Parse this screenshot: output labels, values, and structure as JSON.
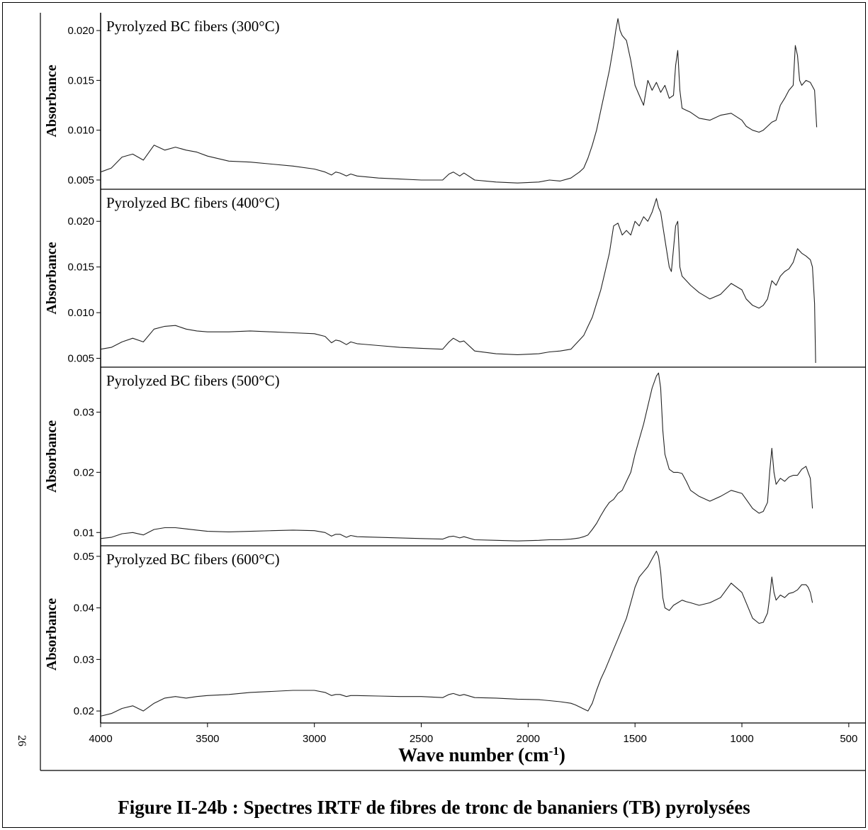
{
  "page_number": "26",
  "caption": "Figure II-24b : Spectres IRTF de fibres de tronc de bananiers (TB) pyrolysées",
  "chart_data": [
    {
      "type": "line",
      "title": "Pyrolyzed BC fibers (300°C)",
      "ylabel": "Absorbance",
      "xlim": [
        4000,
        420
      ],
      "ylim": [
        0.0045,
        0.0215
      ],
      "yticks": [
        "0.005",
        "0.010",
        "0.015",
        "0.020"
      ],
      "ytick_values": [
        0.005,
        0.01,
        0.015,
        0.02
      ],
      "series": [
        {
          "x": [
            4000,
            3950,
            3900,
            3850,
            3800,
            3750,
            3700,
            3650,
            3600,
            3550,
            3500,
            3400,
            3300,
            3200,
            3100,
            3000,
            2950,
            2920,
            2900,
            2880,
            2850,
            2830,
            2800,
            2700,
            2600,
            2500,
            2400,
            2370,
            2350,
            2320,
            2300,
            2250,
            2150,
            2050,
            1950,
            1900,
            1850,
            1800,
            1780,
            1760,
            1740,
            1720,
            1700,
            1680,
            1660,
            1640,
            1620,
            1600,
            1590,
            1580,
            1570,
            1560,
            1540,
            1520,
            1500,
            1480,
            1460,
            1440,
            1420,
            1400,
            1380,
            1360,
            1340,
            1320,
            1310,
            1300,
            1290,
            1280,
            1260,
            1240,
            1200,
            1150,
            1100,
            1050,
            1000,
            980,
            950,
            920,
            900,
            880,
            860,
            840,
            820,
            800,
            780,
            760,
            750,
            740,
            730,
            720,
            700,
            680,
            660,
            650
          ],
          "y": [
            0.0058,
            0.0062,
            0.0073,
            0.0076,
            0.007,
            0.0085,
            0.008,
            0.0083,
            0.008,
            0.0078,
            0.0074,
            0.0069,
            0.0068,
            0.0066,
            0.0064,
            0.0061,
            0.0058,
            0.0055,
            0.0058,
            0.0057,
            0.0054,
            0.0056,
            0.0054,
            0.0052,
            0.0051,
            0.005,
            0.005,
            0.0056,
            0.0058,
            0.0054,
            0.0057,
            0.005,
            0.0048,
            0.0047,
            0.0048,
            0.005,
            0.0049,
            0.0052,
            0.0055,
            0.0058,
            0.0062,
            0.0072,
            0.0085,
            0.01,
            0.012,
            0.014,
            0.016,
            0.0185,
            0.02,
            0.0212,
            0.02,
            0.0195,
            0.019,
            0.017,
            0.0145,
            0.0135,
            0.0125,
            0.015,
            0.014,
            0.0148,
            0.0138,
            0.0145,
            0.0132,
            0.0135,
            0.0165,
            0.018,
            0.014,
            0.0122,
            0.012,
            0.0118,
            0.0112,
            0.011,
            0.0115,
            0.0117,
            0.011,
            0.0104,
            0.01,
            0.0098,
            0.01,
            0.0104,
            0.0108,
            0.011,
            0.0125,
            0.0132,
            0.014,
            0.0145,
            0.0185,
            0.0175,
            0.015,
            0.0145,
            0.015,
            0.0148,
            0.014,
            0.0103
          ]
        }
      ]
    },
    {
      "type": "line",
      "title": "Pyrolyzed BC fibers (400°C)",
      "ylabel": "Absorbance",
      "xlim": [
        4000,
        420
      ],
      "ylim": [
        0.0045,
        0.0232
      ],
      "yticks": [
        "0.005",
        "0.010",
        "0.015",
        "0.020"
      ],
      "ytick_values": [
        0.005,
        0.01,
        0.015,
        0.02
      ],
      "series": [
        {
          "x": [
            4000,
            3950,
            3900,
            3850,
            3800,
            3750,
            3700,
            3650,
            3600,
            3550,
            3500,
            3400,
            3300,
            3200,
            3100,
            3000,
            2950,
            2920,
            2900,
            2880,
            2850,
            2830,
            2800,
            2700,
            2600,
            2500,
            2400,
            2370,
            2350,
            2320,
            2300,
            2250,
            2150,
            2050,
            1950,
            1900,
            1850,
            1800,
            1780,
            1760,
            1740,
            1720,
            1700,
            1680,
            1660,
            1640,
            1620,
            1600,
            1580,
            1560,
            1540,
            1520,
            1500,
            1480,
            1460,
            1440,
            1420,
            1400,
            1390,
            1380,
            1360,
            1340,
            1330,
            1310,
            1300,
            1290,
            1280,
            1260,
            1240,
            1200,
            1150,
            1100,
            1050,
            1000,
            980,
            950,
            920,
            900,
            880,
            860,
            840,
            820,
            800,
            780,
            760,
            740,
            720,
            700,
            680,
            670,
            660,
            655
          ],
          "y": [
            0.006,
            0.0062,
            0.0068,
            0.0072,
            0.0068,
            0.0082,
            0.0085,
            0.0086,
            0.0082,
            0.008,
            0.0079,
            0.0079,
            0.008,
            0.0079,
            0.0078,
            0.0077,
            0.0074,
            0.0067,
            0.007,
            0.0069,
            0.0065,
            0.0068,
            0.0066,
            0.0064,
            0.0062,
            0.0061,
            0.006,
            0.0068,
            0.0072,
            0.0068,
            0.0069,
            0.0058,
            0.0055,
            0.0054,
            0.0055,
            0.0057,
            0.0058,
            0.006,
            0.0065,
            0.007,
            0.0075,
            0.0085,
            0.0095,
            0.011,
            0.0125,
            0.0145,
            0.0165,
            0.0195,
            0.0198,
            0.0185,
            0.019,
            0.0185,
            0.02,
            0.0195,
            0.0205,
            0.02,
            0.021,
            0.0225,
            0.0215,
            0.021,
            0.018,
            0.015,
            0.0145,
            0.0195,
            0.02,
            0.015,
            0.014,
            0.0135,
            0.013,
            0.0122,
            0.0115,
            0.012,
            0.0132,
            0.0125,
            0.0115,
            0.0108,
            0.0105,
            0.0108,
            0.0115,
            0.0135,
            0.013,
            0.014,
            0.0145,
            0.0148,
            0.0155,
            0.017,
            0.0165,
            0.0162,
            0.0158,
            0.015,
            0.011,
            0.0045
          ]
        }
      ]
    },
    {
      "type": "line",
      "title": "Pyrolyzed BC fibers (500°C)",
      "ylabel": "Absorbance",
      "xlim": [
        4000,
        420
      ],
      "ylim": [
        0.0085,
        0.037
      ],
      "yticks": [
        "0.01",
        "0.02",
        "0.03"
      ],
      "ytick_values": [
        0.01,
        0.02,
        0.03
      ],
      "series": [
        {
          "x": [
            4000,
            3950,
            3900,
            3850,
            3800,
            3750,
            3700,
            3650,
            3600,
            3550,
            3500,
            3400,
            3300,
            3200,
            3100,
            3000,
            2950,
            2920,
            2900,
            2880,
            2850,
            2830,
            2800,
            2700,
            2600,
            2500,
            2400,
            2370,
            2350,
            2320,
            2300,
            2250,
            2150,
            2050,
            1950,
            1900,
            1850,
            1800,
            1780,
            1760,
            1740,
            1720,
            1700,
            1680,
            1660,
            1640,
            1620,
            1600,
            1580,
            1560,
            1540,
            1520,
            1500,
            1480,
            1460,
            1440,
            1420,
            1400,
            1390,
            1380,
            1370,
            1360,
            1340,
            1320,
            1300,
            1280,
            1260,
            1240,
            1200,
            1150,
            1100,
            1050,
            1000,
            980,
            950,
            920,
            900,
            880,
            870,
            860,
            850,
            840,
            820,
            800,
            780,
            760,
            740,
            720,
            700,
            690,
            680,
            670
          ],
          "y": [
            0.009,
            0.0092,
            0.0098,
            0.01,
            0.0096,
            0.0105,
            0.0108,
            0.0108,
            0.0106,
            0.0104,
            0.0102,
            0.0101,
            0.0102,
            0.0103,
            0.0104,
            0.0103,
            0.01,
            0.0094,
            0.0097,
            0.0097,
            0.0092,
            0.0095,
            0.0093,
            0.0092,
            0.0091,
            0.009,
            0.0089,
            0.0093,
            0.0094,
            0.0091,
            0.0093,
            0.0088,
            0.0087,
            0.0086,
            0.0087,
            0.0088,
            0.0088,
            0.0089,
            0.009,
            0.0091,
            0.0093,
            0.0096,
            0.0105,
            0.0115,
            0.0128,
            0.014,
            0.015,
            0.0155,
            0.0165,
            0.017,
            0.0185,
            0.02,
            0.023,
            0.0255,
            0.028,
            0.031,
            0.034,
            0.036,
            0.0365,
            0.034,
            0.027,
            0.023,
            0.0205,
            0.02,
            0.02,
            0.0198,
            0.0185,
            0.017,
            0.016,
            0.0152,
            0.016,
            0.017,
            0.0165,
            0.0155,
            0.014,
            0.0132,
            0.0135,
            0.015,
            0.02,
            0.024,
            0.02,
            0.018,
            0.019,
            0.0185,
            0.0192,
            0.0195,
            0.0195,
            0.0205,
            0.021,
            0.02,
            0.019,
            0.014
          ]
        }
      ]
    },
    {
      "type": "line",
      "title": "Pyrolyzed BC fibers (600°C)",
      "ylabel": "Absorbance",
      "xlim": [
        4000,
        420
      ],
      "ylim": [
        0.0185,
        0.0515
      ],
      "yticks": [
        "0.02",
        "0.03",
        "0.04",
        "0.05"
      ],
      "ytick_values": [
        0.02,
        0.03,
        0.04,
        0.05
      ],
      "series": [
        {
          "x": [
            4000,
            3950,
            3900,
            3850,
            3800,
            3750,
            3700,
            3650,
            3600,
            3550,
            3500,
            3400,
            3300,
            3200,
            3100,
            3000,
            2950,
            2920,
            2900,
            2880,
            2850,
            2830,
            2800,
            2700,
            2600,
            2500,
            2400,
            2370,
            2350,
            2320,
            2300,
            2250,
            2150,
            2050,
            1950,
            1900,
            1850,
            1800,
            1780,
            1760,
            1740,
            1720,
            1700,
            1680,
            1660,
            1640,
            1620,
            1600,
            1580,
            1560,
            1540,
            1520,
            1500,
            1480,
            1460,
            1440,
            1420,
            1400,
            1390,
            1380,
            1370,
            1360,
            1340,
            1320,
            1300,
            1280,
            1260,
            1240,
            1200,
            1150,
            1100,
            1050,
            1000,
            980,
            950,
            920,
            900,
            880,
            870,
            860,
            850,
            840,
            820,
            800,
            780,
            760,
            740,
            720,
            700,
            690,
            680,
            670
          ],
          "y": [
            0.019,
            0.0195,
            0.0205,
            0.021,
            0.02,
            0.0215,
            0.0225,
            0.0228,
            0.0225,
            0.0228,
            0.023,
            0.0232,
            0.0236,
            0.0238,
            0.024,
            0.024,
            0.0236,
            0.023,
            0.0232,
            0.0232,
            0.0228,
            0.023,
            0.023,
            0.0229,
            0.0228,
            0.0228,
            0.0226,
            0.0232,
            0.0234,
            0.023,
            0.0232,
            0.0226,
            0.0225,
            0.0223,
            0.0222,
            0.022,
            0.0218,
            0.0215,
            0.0212,
            0.0208,
            0.0204,
            0.02,
            0.0215,
            0.024,
            0.0262,
            0.028,
            0.03,
            0.032,
            0.034,
            0.036,
            0.038,
            0.041,
            0.044,
            0.046,
            0.047,
            0.048,
            0.0495,
            0.051,
            0.05,
            0.047,
            0.042,
            0.04,
            0.0395,
            0.0405,
            0.041,
            0.0415,
            0.0412,
            0.041,
            0.0405,
            0.041,
            0.042,
            0.0448,
            0.043,
            0.041,
            0.038,
            0.037,
            0.0372,
            0.039,
            0.042,
            0.046,
            0.043,
            0.0415,
            0.0425,
            0.042,
            0.0428,
            0.043,
            0.0435,
            0.0445,
            0.0445,
            0.044,
            0.043,
            0.041
          ]
        }
      ]
    }
  ],
  "x_axis": {
    "label": "Wave number (cm",
    "label_superscript": "-1",
    "label_close": ")",
    "ticks": [
      "4000",
      "3500",
      "3000",
      "2500",
      "2000",
      "1500",
      "1000",
      "500"
    ],
    "tick_values": [
      4000,
      3500,
      3000,
      2500,
      2000,
      1500,
      1000,
      500
    ]
  }
}
